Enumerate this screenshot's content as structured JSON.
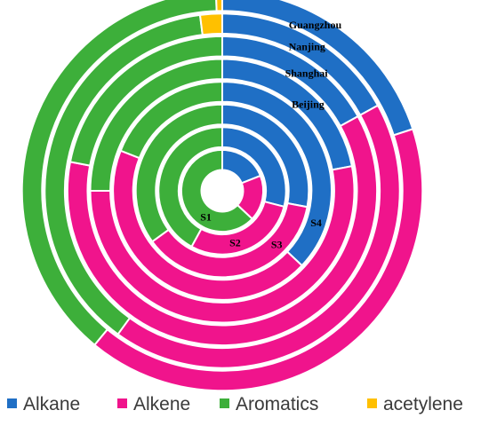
{
  "chart_data": {
    "type": "multi-level donut",
    "title": "",
    "series_order": [
      "Alkane",
      "Alkene",
      "Aromatics",
      "acetylene"
    ],
    "colors": {
      "Alkane": "#1F6FC5",
      "Alkene": "#F0148C",
      "Aromatics": "#3DAF3A",
      "acetylene": "#FFC000"
    },
    "rings": [
      {
        "name": "S1",
        "values": {
          "Alkane": 19,
          "Alkene": 18,
          "Aromatics": 63,
          "acetylene": 0
        }
      },
      {
        "name": "S2",
        "values": {
          "Alkane": 29,
          "Alkene": 29,
          "Aromatics": 42,
          "acetylene": 0
        }
      },
      {
        "name": "S3",
        "values": {
          "Alkane": 28,
          "Alkene": 37,
          "Aromatics": 35,
          "acetylene": 0
        }
      },
      {
        "name": "S4",
        "values": {
          "Alkane": 37,
          "Alkene": 44,
          "Aromatics": 19,
          "acetylene": 0
        }
      },
      {
        "name": "Beijing",
        "values": {
          "Alkane": 22,
          "Alkene": 53,
          "Aromatics": 25,
          "acetylene": 0
        }
      },
      {
        "name": "Shanghai",
        "values": {
          "Alkane": 17,
          "Alkene": 61,
          "Aromatics": 22,
          "acetylene": 0
        }
      },
      {
        "name": "Nanjing",
        "values": {
          "Alkane": 17,
          "Alkene": 43,
          "Aromatics": 38,
          "acetylene": 2
        }
      },
      {
        "name": "Guangzhou",
        "values": {
          "Alkane": 20,
          "Alkene": 41,
          "Aromatics": 38.5,
          "acetylene": 0.5
        }
      }
    ],
    "legend_position": "bottom"
  }
}
